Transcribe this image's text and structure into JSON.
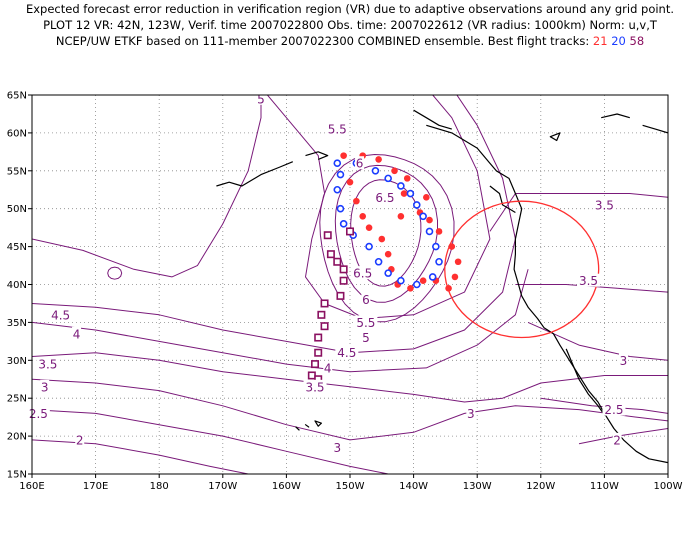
{
  "header": {
    "line1": "Expected forecast error reduction in verification region (VR) due to adaptive observations around any grid point.",
    "line2": "PLOT 12 VR: 42N, 123W, Verif. time 2007022800 Obs. time: 2007022612 (VR radius: 1000km) Norm: u,v,T",
    "line3_prefix": "NCEP/UW ETKF based on 111-member 2007022300 COMBINED ensemble.  Best flight tracks:",
    "track_21": "21",
    "track_20": "20",
    "track_58": "58"
  },
  "colors": {
    "contour": "#7a1a7a",
    "track_21": "#ff3030",
    "track_20": "#1a3cff",
    "track_58": "#8a1060",
    "vr_circle": "#ff3030",
    "coast": "#000000",
    "grid": "#888888"
  },
  "axes": {
    "lon_ticks": [
      "160E",
      "170E",
      "180",
      "170W",
      "160W",
      "150W",
      "140W",
      "130W",
      "120W",
      "110W",
      "100W"
    ],
    "lat_ticks": [
      "65N",
      "60N",
      "55N",
      "50N",
      "45N",
      "40N",
      "35N",
      "30N",
      "25N",
      "20N",
      "15N"
    ],
    "lon_range": [
      160,
      260
    ],
    "lat_range": [
      15,
      65
    ]
  },
  "contour_labels": [
    {
      "text": "5.5",
      "lon": 208,
      "lat": 60.5
    },
    {
      "text": "6",
      "lon": 211.5,
      "lat": 56
    },
    {
      "text": "6.5",
      "lon": 215.5,
      "lat": 51.5
    },
    {
      "text": "6.5",
      "lon": 212,
      "lat": 41.5
    },
    {
      "text": "6",
      "lon": 212.5,
      "lat": 38
    },
    {
      "text": "5.5",
      "lon": 212.5,
      "lat": 35
    },
    {
      "text": "5",
      "lon": 212.5,
      "lat": 33
    },
    {
      "text": "4.5",
      "lon": 209.5,
      "lat": 31
    },
    {
      "text": "4",
      "lon": 206.5,
      "lat": 29
    },
    {
      "text": "3.5",
      "lon": 204.5,
      "lat": 26.5
    },
    {
      "text": "4.5",
      "lon": 164.5,
      "lat": 36
    },
    {
      "text": "4",
      "lon": 167,
      "lat": 33.5
    },
    {
      "text": "3.5",
      "lon": 162.5,
      "lat": 29.5
    },
    {
      "text": "3",
      "lon": 162,
      "lat": 26.5
    },
    {
      "text": "2.5",
      "lon": 161,
      "lat": 23
    },
    {
      "text": "2",
      "lon": 167.5,
      "lat": 19.5
    },
    {
      "text": "3",
      "lon": 208,
      "lat": 18.5
    },
    {
      "text": "3",
      "lon": 229,
      "lat": 23
    },
    {
      "text": "3.5",
      "lon": 250,
      "lat": 50.5
    },
    {
      "text": "3.5",
      "lon": 247.5,
      "lat": 40.5
    },
    {
      "text": "3",
      "lon": 253,
      "lat": 30
    },
    {
      "text": "2.5",
      "lon": 251.5,
      "lat": 23.5
    },
    {
      "text": "2",
      "lon": 252,
      "lat": 19.5
    },
    {
      "text": "5",
      "lon": 196,
      "lat": 64.5
    }
  ],
  "tracks": {
    "t21": [
      [
        209,
        57
      ],
      [
        212,
        57
      ],
      [
        214.5,
        56.5
      ],
      [
        217,
        55
      ],
      [
        219,
        54
      ],
      [
        218.5,
        52
      ],
      [
        222,
        51.5
      ],
      [
        221,
        49.5
      ],
      [
        218,
        49
      ],
      [
        222.5,
        48.5
      ],
      [
        224,
        47
      ],
      [
        226,
        45
      ],
      [
        227,
        43
      ],
      [
        226.5,
        41
      ],
      [
        225.5,
        39.5
      ],
      [
        223.5,
        40.5
      ],
      [
        221.5,
        40.5
      ],
      [
        219.5,
        39.5
      ],
      [
        217.5,
        40
      ],
      [
        216.5,
        42
      ],
      [
        216,
        44
      ],
      [
        215,
        46
      ],
      [
        213,
        47.5
      ],
      [
        212,
        49
      ],
      [
        211,
        51
      ],
      [
        210,
        53.5
      ]
    ],
    "t20": [
      [
        208,
        56
      ],
      [
        211,
        56
      ],
      [
        214,
        55
      ],
      [
        216,
        54
      ],
      [
        218,
        53
      ],
      [
        219.5,
        52
      ],
      [
        220.5,
        50.5
      ],
      [
        221.5,
        49
      ],
      [
        222.5,
        47
      ],
      [
        223.5,
        45
      ],
      [
        224,
        43
      ],
      [
        223,
        41
      ],
      [
        220.5,
        40
      ],
      [
        218,
        40.5
      ],
      [
        216,
        41.5
      ],
      [
        214.5,
        43
      ],
      [
        213,
        45
      ],
      [
        210.5,
        46.5
      ],
      [
        209,
        48
      ],
      [
        208.5,
        50
      ],
      [
        208,
        52.5
      ],
      [
        208.5,
        54.5
      ]
    ],
    "t58": [
      [
        210,
        47
      ],
      [
        206.5,
        46.5
      ],
      [
        207,
        44
      ],
      [
        208,
        43
      ],
      [
        209,
        42
      ],
      [
        209,
        40.5
      ],
      [
        208.5,
        38.5
      ],
      [
        206,
        37.5
      ],
      [
        205.5,
        36
      ],
      [
        206,
        34.5
      ],
      [
        205,
        33
      ],
      [
        205,
        31
      ],
      [
        204.5,
        29.5
      ],
      [
        204,
        28
      ],
      [
        205,
        27.5
      ]
    ]
  },
  "vr": {
    "lon": 237,
    "lat": 42,
    "radius_km": 1000
  }
}
